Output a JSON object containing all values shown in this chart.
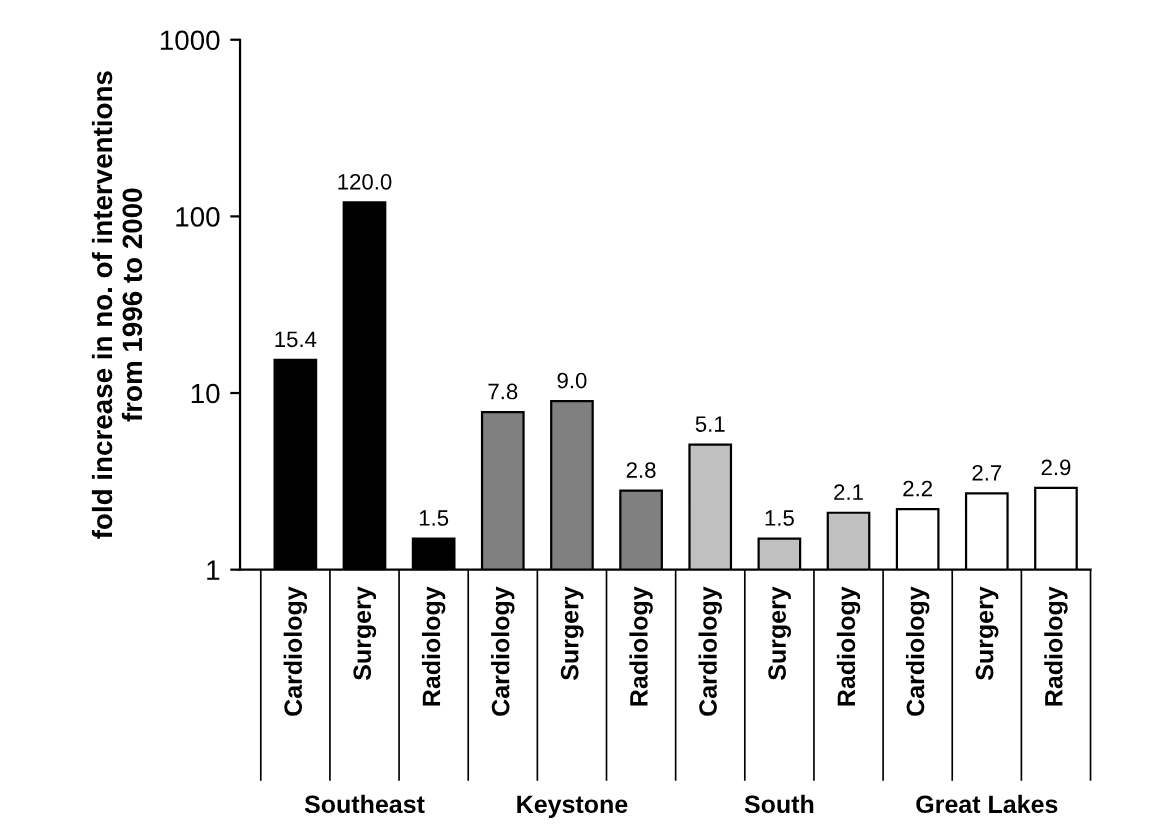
{
  "chart_data": {
    "type": "bar",
    "ylabel": "fold increase in no. of interventions\nfrom 1996 to 2000",
    "categories": [
      "Cardiology",
      "Surgery",
      "Radiology",
      "Cardiology",
      "Surgery",
      "Radiology",
      "Cardiology",
      "Surgery",
      "Radiology",
      "Cardiology",
      "Surgery",
      "Radiology"
    ],
    "series": [
      {
        "name": "Southeast",
        "color": "#000000",
        "values": [
          15.4,
          120,
          1.5,
          null,
          null,
          null,
          null,
          null,
          null,
          null,
          null,
          null
        ],
        "value_labels": [
          "15.4",
          "120.0",
          "1.5",
          null,
          null,
          null,
          null,
          null,
          null,
          null,
          null,
          null
        ]
      },
      {
        "name": "Keystone",
        "color": "#808080",
        "values": [
          null,
          null,
          null,
          7.8,
          9,
          2.8,
          null,
          null,
          null,
          null,
          null,
          null
        ],
        "value_labels": [
          null,
          null,
          null,
          "7.8",
          "9.0",
          "2.8",
          null,
          null,
          null,
          null,
          null,
          null
        ]
      },
      {
        "name": "South",
        "color": "#c0c0c0",
        "values": [
          null,
          null,
          null,
          null,
          null,
          null,
          5.1,
          1.5,
          2.1,
          null,
          null,
          null
        ],
        "value_labels": [
          null,
          null,
          null,
          null,
          null,
          null,
          "5.1",
          "1.5",
          "2.1",
          null,
          null,
          null
        ]
      },
      {
        "name": "Great Lakes",
        "color": "#ffffff",
        "values": [
          null,
          null,
          null,
          null,
          null,
          null,
          null,
          null,
          null,
          2.2,
          2.7,
          2.9
        ],
        "value_labels": [
          null,
          null,
          null,
          null,
          null,
          null,
          null,
          null,
          null,
          "2.2",
          "2.7",
          "2.9"
        ]
      }
    ],
    "log": true,
    "ylim": [
      1,
      1000
    ],
    "yticks": [
      1,
      10,
      100,
      1000
    ],
    "grid": false,
    "legend": false
  }
}
